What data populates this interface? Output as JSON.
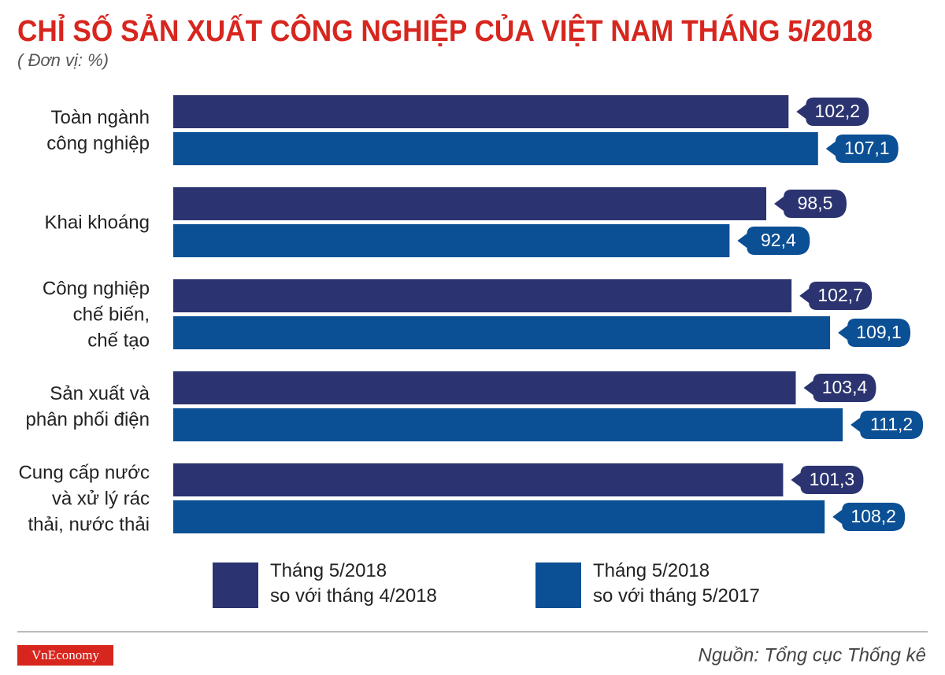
{
  "chart_data": {
    "type": "bar",
    "orientation": "horizontal",
    "title": "CHỈ SỐ SẢN XUẤT CÔNG NGHIỆP CỦA VIỆT NAM THÁNG 5/2018",
    "subtitle": "( Đơn vị: %)",
    "categories": [
      "Toàn ngành\ncông nghiệp",
      "Khai khoáng",
      "Công nghiệp\nchế biến,\nchế tạo",
      "Sản xuất và\nphân phối điện",
      "Cung cấp nước\nvà xử lý rác\nthải, nước thải"
    ],
    "series": [
      {
        "name": "Tháng 5/2018\nso với tháng 4/2018",
        "color": "#2b3470",
        "values": [
          102.2,
          98.5,
          102.7,
          103.4,
          101.3
        ],
        "value_labels": [
          "102,2",
          "98,5",
          "102,7",
          "103,4",
          "101,3"
        ]
      },
      {
        "name": "Tháng 5/2018\nso với tháng 5/2017",
        "color": "#0b4f95",
        "values": [
          107.1,
          92.4,
          109.1,
          111.2,
          108.2
        ],
        "value_labels": [
          "107,1",
          "92,4",
          "109,1",
          "111,2",
          "108,2"
        ]
      }
    ]
  },
  "footer": {
    "brand": "VnEconomy",
    "source": "Nguồn: Tổng cục Thống kê"
  }
}
